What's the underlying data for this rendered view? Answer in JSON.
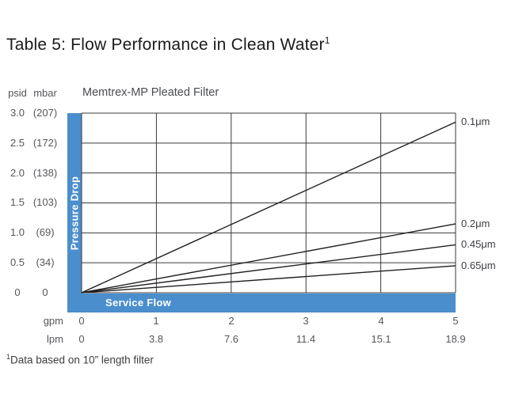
{
  "page": {
    "title": "Table 5: Flow Performance in Clean Water",
    "title_superscript": "1",
    "footnote_superscript": "1",
    "footnote": "Data based on 10” length filter"
  },
  "chart_data": {
    "type": "line",
    "title": "Memtrex-MP Pleated Filter",
    "y_axis": {
      "axis_title": "Pressure Drop",
      "unit_labels": {
        "psid": "psid",
        "mbar": "mbar"
      },
      "range_psid": [
        0,
        3.0
      ],
      "ticks": [
        {
          "psid": "3.0",
          "mbar": "(207)"
        },
        {
          "psid": "2.5",
          "mbar": "(172)"
        },
        {
          "psid": "2.0",
          "mbar": "(138)"
        },
        {
          "psid": "1.5",
          "mbar": "(103)"
        },
        {
          "psid": "1.0",
          "mbar": "(69)"
        },
        {
          "psid": "0.5",
          "mbar": "(34)"
        },
        {
          "psid": "0",
          "mbar": "0"
        }
      ]
    },
    "x_axis": {
      "axis_title": "Service Flow",
      "unit_rows": {
        "gpm": "gpm",
        "lpm": "lpm"
      },
      "range_gpm": [
        0,
        5
      ],
      "ticks_gpm": [
        "0",
        "1",
        "2",
        "3",
        "4",
        "5"
      ],
      "ticks_lpm": [
        "0",
        "3.8",
        "7.6",
        "11.4",
        "15.1",
        "18.9"
      ]
    },
    "series": [
      {
        "name": "0.1μm",
        "points_gpm_psid": [
          [
            0,
            0
          ],
          [
            5,
            2.85
          ]
        ]
      },
      {
        "name": "0.2μm",
        "points_gpm_psid": [
          [
            0,
            0
          ],
          [
            5,
            1.15
          ]
        ]
      },
      {
        "name": "0.45μm",
        "points_gpm_psid": [
          [
            0,
            0
          ],
          [
            5,
            0.8
          ]
        ]
      },
      {
        "name": "0.65μm",
        "points_gpm_psid": [
          [
            0,
            0
          ],
          [
            5,
            0.45
          ]
        ]
      }
    ],
    "grid": true,
    "legend_position": "right-of-lines",
    "colors": {
      "axis_bar_blue": "#4a8ecd",
      "line_color": "#231f20",
      "grid_color": "#3a3a3a",
      "label_gray": "#55565a",
      "title_color": "#1a1a1a"
    }
  }
}
